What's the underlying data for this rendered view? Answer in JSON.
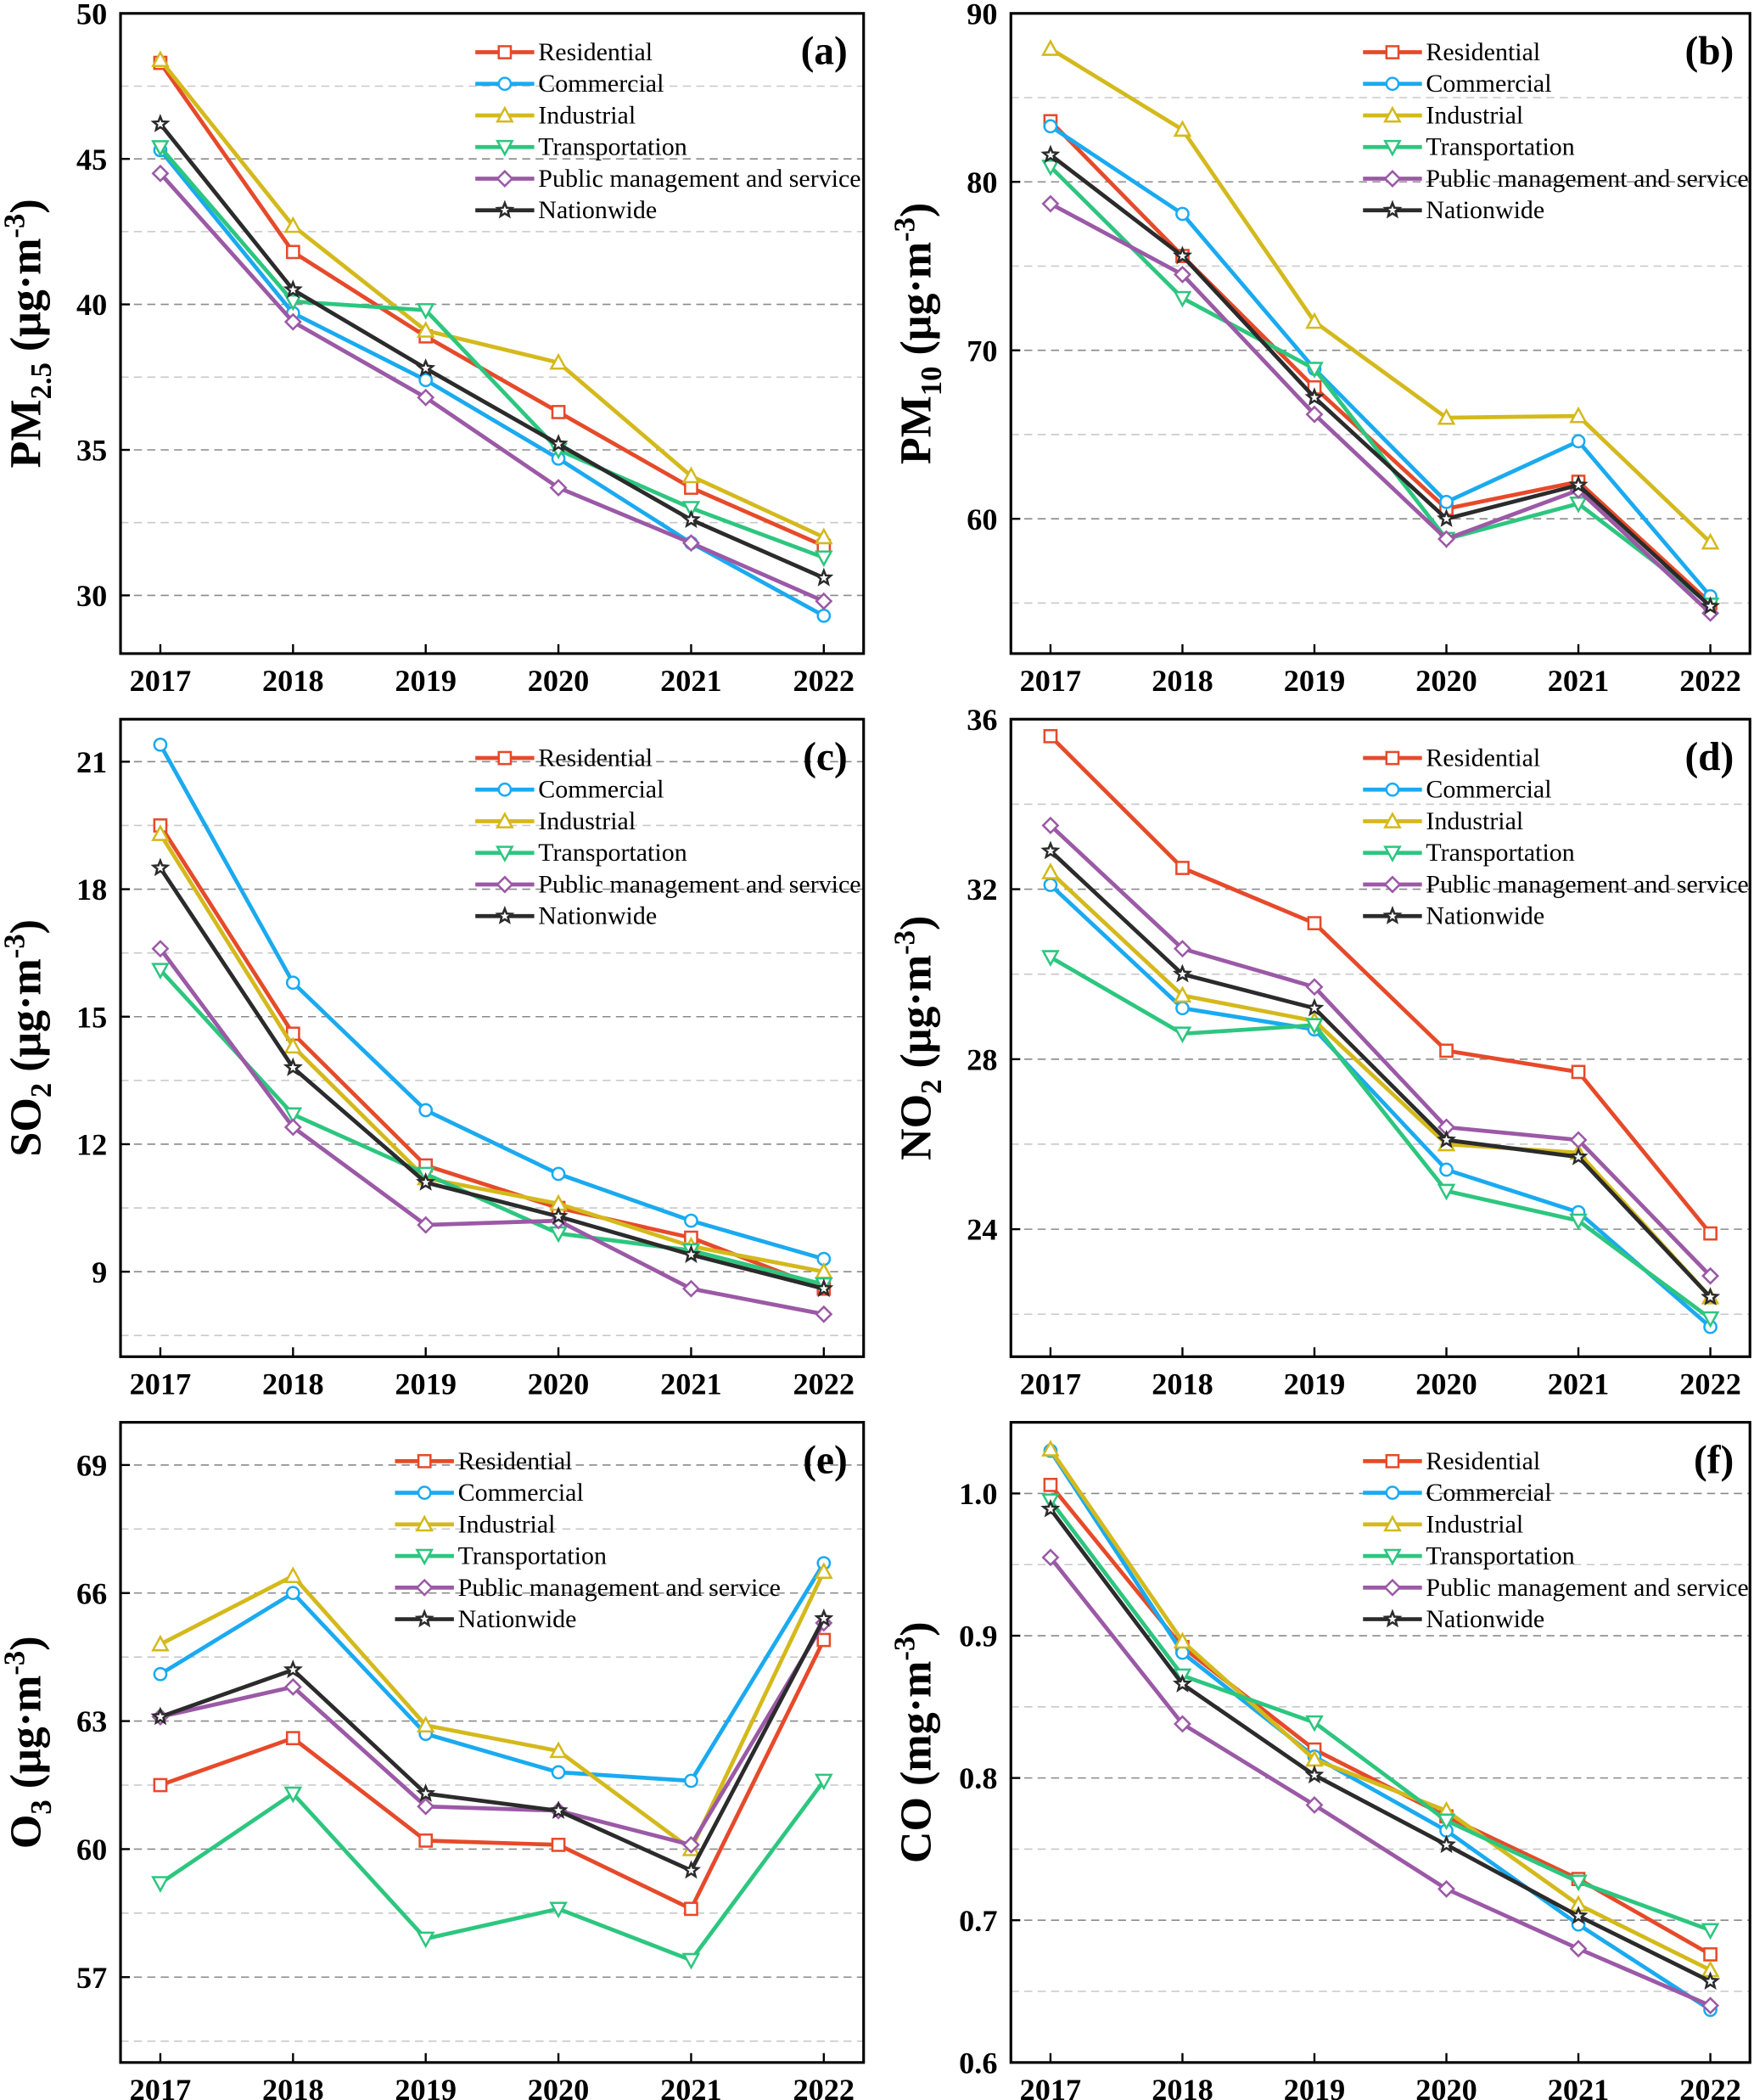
{
  "chart_data": [
    {
      "type": "line",
      "panel_label": "(a)",
      "ylabel": {
        "base": "PM",
        "sub": "2.5",
        "unit": " (μg·m",
        "sup": "-3",
        "close": ")"
      },
      "x": [
        2017,
        2018,
        2019,
        2020,
        2021,
        2022
      ],
      "ylim": [
        28,
        50
      ],
      "yticks": [
        30,
        35,
        40,
        45,
        50
      ],
      "minor_grid": [
        32.5,
        37.5,
        42.5,
        47.5
      ],
      "legend_placement": "top-right",
      "series": [
        {
          "name": "Residential",
          "color": "#e64a2a",
          "marker": "square",
          "values": [
            48.3,
            41.8,
            38.9,
            36.3,
            33.7,
            31.7
          ]
        },
        {
          "name": "Commercial",
          "color": "#1aaaf0",
          "marker": "circle",
          "values": [
            45.3,
            39.7,
            37.4,
            34.7,
            31.8,
            29.3
          ]
        },
        {
          "name": "Industrial",
          "color": "#d4b91c",
          "marker": "triangle-up",
          "values": [
            48.4,
            42.7,
            39.1,
            38.0,
            34.1,
            32.0
          ]
        },
        {
          "name": "Transportation",
          "color": "#2dc67f",
          "marker": "triangle-down",
          "values": [
            45.4,
            40.1,
            39.8,
            35.0,
            33.0,
            31.3
          ]
        },
        {
          "name": "Public management and service",
          "color": "#9b59a6",
          "marker": "diamond",
          "values": [
            44.5,
            39.4,
            36.8,
            33.7,
            31.8,
            29.8
          ]
        },
        {
          "name": "Nationwide",
          "color": "#2b2b2b",
          "marker": "star",
          "values": [
            46.2,
            40.5,
            37.8,
            35.2,
            32.6,
            30.6
          ]
        }
      ]
    },
    {
      "type": "line",
      "panel_label": "(b)",
      "ylabel": {
        "base": "PM",
        "sub": "10",
        "unit": " (μg·m",
        "sup": "-3",
        "close": ")"
      },
      "x": [
        2017,
        2018,
        2019,
        2020,
        2021,
        2022
      ],
      "ylim": [
        52,
        90
      ],
      "yticks": [
        60,
        70,
        80,
        90
      ],
      "minor_grid": [
        55,
        65,
        75,
        85
      ],
      "legend_placement": "top-right",
      "series": [
        {
          "name": "Residential",
          "color": "#e64a2a",
          "marker": "square",
          "values": [
            83.6,
            75.6,
            67.8,
            60.6,
            62.2,
            55.0
          ]
        },
        {
          "name": "Commercial",
          "color": "#1aaaf0",
          "marker": "circle",
          "values": [
            83.3,
            78.1,
            68.9,
            61.0,
            64.6,
            55.4
          ]
        },
        {
          "name": "Industrial",
          "color": "#d4b91c",
          "marker": "triangle-up",
          "values": [
            87.9,
            83.1,
            71.7,
            66.0,
            66.1,
            58.6
          ]
        },
        {
          "name": "Transportation",
          "color": "#2dc67f",
          "marker": "triangle-down",
          "values": [
            80.9,
            73.1,
            68.9,
            58.8,
            60.9,
            54.9
          ]
        },
        {
          "name": "Public management and service",
          "color": "#9b59a6",
          "marker": "diamond",
          "values": [
            78.7,
            74.5,
            66.2,
            58.8,
            61.7,
            54.4
          ]
        },
        {
          "name": "Nationwide",
          "color": "#2b2b2b",
          "marker": "star",
          "values": [
            81.6,
            75.6,
            67.2,
            60.0,
            62.0,
            54.8
          ]
        }
      ]
    },
    {
      "type": "line",
      "panel_label": "(c)",
      "ylabel": {
        "base": "SO",
        "sub": "2",
        "unit": " (μg·m",
        "sup": "-3",
        "close": ")"
      },
      "x": [
        2017,
        2018,
        2019,
        2020,
        2021,
        2022
      ],
      "ylim": [
        7,
        22
      ],
      "yticks": [
        9,
        12,
        15,
        18,
        21
      ],
      "minor_grid": [
        7.5,
        10.5,
        13.5,
        16.5,
        19.5
      ],
      "legend_placement": "top-right",
      "series": [
        {
          "name": "Residential",
          "color": "#e64a2a",
          "marker": "square",
          "values": [
            19.5,
            14.6,
            11.5,
            10.5,
            9.8,
            8.6
          ]
        },
        {
          "name": "Commercial",
          "color": "#1aaaf0",
          "marker": "circle",
          "values": [
            21.4,
            15.8,
            12.8,
            11.3,
            10.2,
            9.3
          ]
        },
        {
          "name": "Industrial",
          "color": "#d4b91c",
          "marker": "triangle-up",
          "values": [
            19.3,
            14.3,
            11.2,
            10.6,
            9.6,
            9.0
          ]
        },
        {
          "name": "Transportation",
          "color": "#2dc67f",
          "marker": "triangle-down",
          "values": [
            16.1,
            12.7,
            11.3,
            9.9,
            9.5,
            8.7
          ]
        },
        {
          "name": "Public management and service",
          "color": "#9b59a6",
          "marker": "diamond",
          "values": [
            16.6,
            12.4,
            10.1,
            10.2,
            8.6,
            8.0
          ]
        },
        {
          "name": "Nationwide",
          "color": "#2b2b2b",
          "marker": "star",
          "values": [
            18.5,
            13.8,
            11.1,
            10.3,
            9.4,
            8.6
          ]
        }
      ]
    },
    {
      "type": "line",
      "panel_label": "(d)",
      "ylabel": {
        "base": "NO",
        "sub": "2",
        "unit": " (μg·m",
        "sup": "-3",
        "close": ")"
      },
      "x": [
        2017,
        2018,
        2019,
        2020,
        2021,
        2022
      ],
      "ylim": [
        21,
        36
      ],
      "yticks": [
        24,
        28,
        32,
        36
      ],
      "minor_grid": [
        22,
        26,
        30,
        34
      ],
      "legend_placement": "top-right",
      "series": [
        {
          "name": "Residential",
          "color": "#e64a2a",
          "marker": "square",
          "values": [
            35.6,
            32.5,
            31.2,
            28.2,
            27.7,
            23.9
          ]
        },
        {
          "name": "Commercial",
          "color": "#1aaaf0",
          "marker": "circle",
          "values": [
            32.1,
            29.2,
            28.7,
            25.4,
            24.4,
            21.7
          ]
        },
        {
          "name": "Industrial",
          "color": "#d4b91c",
          "marker": "triangle-up",
          "values": [
            32.4,
            29.5,
            28.9,
            26.0,
            25.8,
            22.4
          ]
        },
        {
          "name": "Transportation",
          "color": "#2dc67f",
          "marker": "triangle-down",
          "values": [
            30.4,
            28.6,
            28.8,
            24.9,
            24.2,
            21.9
          ]
        },
        {
          "name": "Public management and service",
          "color": "#9b59a6",
          "marker": "diamond",
          "values": [
            33.5,
            30.6,
            29.7,
            26.4,
            26.1,
            22.9
          ]
        },
        {
          "name": "Nationwide",
          "color": "#2b2b2b",
          "marker": "star",
          "values": [
            32.9,
            30.0,
            29.2,
            26.1,
            25.7,
            22.4
          ]
        }
      ]
    },
    {
      "type": "line",
      "panel_label": "(e)",
      "ylabel": {
        "base": "O",
        "sub": "3",
        "unit": " (μg·m",
        "sup": "-3",
        "close": ")"
      },
      "x": [
        2017,
        2018,
        2019,
        2020,
        2021,
        2022
      ],
      "ylim": [
        55,
        70
      ],
      "yticks": [
        57,
        60,
        63,
        66,
        69
      ],
      "minor_grid": [
        55.5,
        58.5,
        61.5,
        64.5,
        67.5
      ],
      "legend_placement": "top-center",
      "series": [
        {
          "name": "Residential",
          "color": "#e64a2a",
          "marker": "square",
          "values": [
            61.5,
            62.6,
            60.2,
            60.1,
            58.6,
            64.9
          ]
        },
        {
          "name": "Commercial",
          "color": "#1aaaf0",
          "marker": "circle",
          "values": [
            64.1,
            66.0,
            62.7,
            61.8,
            61.6,
            66.7
          ]
        },
        {
          "name": "Industrial",
          "color": "#d4b91c",
          "marker": "triangle-up",
          "values": [
            64.8,
            66.4,
            62.9,
            62.3,
            60.0,
            66.5
          ]
        },
        {
          "name": "Transportation",
          "color": "#2dc67f",
          "marker": "triangle-down",
          "values": [
            59.2,
            61.3,
            57.9,
            58.6,
            57.4,
            61.6
          ]
        },
        {
          "name": "Public management and service",
          "color": "#9b59a6",
          "marker": "diamond",
          "values": [
            63.1,
            63.8,
            61.0,
            60.9,
            60.1,
            65.3
          ]
        },
        {
          "name": "Nationwide",
          "color": "#2b2b2b",
          "marker": "star",
          "values": [
            63.1,
            64.2,
            61.3,
            60.9,
            59.5,
            65.4
          ]
        }
      ]
    },
    {
      "type": "line",
      "panel_label": "(f)",
      "ylabel": {
        "base": "CO",
        "sub": "",
        "unit": " (mg·m",
        "sup": "-3",
        "close": ")"
      },
      "x": [
        2017,
        2018,
        2019,
        2020,
        2021,
        2022
      ],
      "ylim": [
        0.6,
        1.05
      ],
      "yticks": [
        0.6,
        0.7,
        0.8,
        0.9,
        1.0
      ],
      "ytick_labels": [
        "0.6",
        "0.7",
        "0.8",
        "0.9",
        "1.0"
      ],
      "minor_grid": [
        0.65,
        0.75,
        0.85,
        0.95
      ],
      "legend_placement": "top-right",
      "series": [
        {
          "name": "Residential",
          "color": "#e64a2a",
          "marker": "square",
          "values": [
            1.006,
            0.892,
            0.82,
            0.773,
            0.729,
            0.676
          ]
        },
        {
          "name": "Commercial",
          "color": "#1aaaf0",
          "marker": "circle",
          "values": [
            1.03,
            0.888,
            0.815,
            0.763,
            0.697,
            0.637
          ]
        },
        {
          "name": "Industrial",
          "color": "#d4b91c",
          "marker": "triangle-up",
          "values": [
            1.031,
            0.896,
            0.813,
            0.777,
            0.711,
            0.665
          ]
        },
        {
          "name": "Transportation",
          "color": "#2dc67f",
          "marker": "triangle-down",
          "values": [
            0.995,
            0.872,
            0.839,
            0.77,
            0.727,
            0.693
          ]
        },
        {
          "name": "Public management and service",
          "color": "#9b59a6",
          "marker": "diamond",
          "values": [
            0.955,
            0.838,
            0.781,
            0.722,
            0.68,
            0.64
          ]
        },
        {
          "name": "Nationwide",
          "color": "#2b2b2b",
          "marker": "star",
          "values": [
            0.989,
            0.866,
            0.802,
            0.753,
            0.703,
            0.657
          ]
        }
      ]
    }
  ]
}
